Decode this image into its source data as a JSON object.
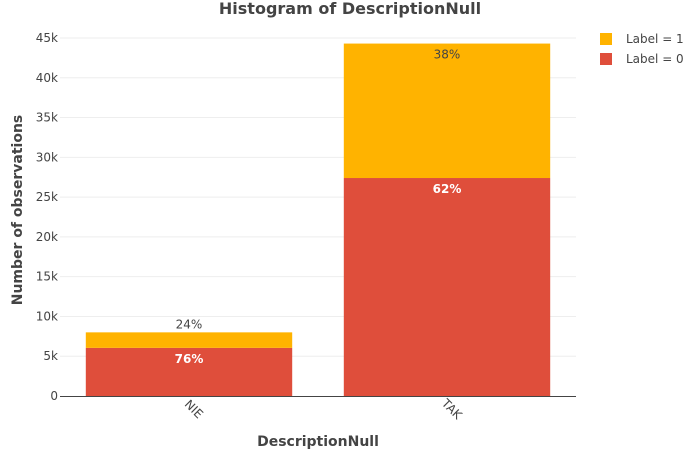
{
  "chart_data": {
    "type": "bar",
    "stacked": true,
    "title": "Histogram of DescriptionNull",
    "xlabel": "DescriptionNull",
    "ylabel": "Number of observations",
    "categories": [
      "NIE",
      "TAK"
    ],
    "ylim": [
      0,
      45000
    ],
    "yticks": [
      0,
      5000,
      10000,
      15000,
      20000,
      25000,
      30000,
      35000,
      40000,
      45000
    ],
    "ytick_labels": [
      "0",
      "5k",
      "10k",
      "15k",
      "20k",
      "25k",
      "30k",
      "35k",
      "40k",
      "45k"
    ],
    "grid": true,
    "legend_position": "top-right",
    "series": [
      {
        "name": "Label = 0",
        "color": "#DF4E3B",
        "values": [
          6050,
          27400
        ],
        "labels": [
          "76%",
          "62%"
        ]
      },
      {
        "name": "Label = 1",
        "color": "#FFB300",
        "values": [
          1950,
          16900
        ],
        "labels": [
          "24%",
          "38%"
        ]
      }
    ]
  }
}
